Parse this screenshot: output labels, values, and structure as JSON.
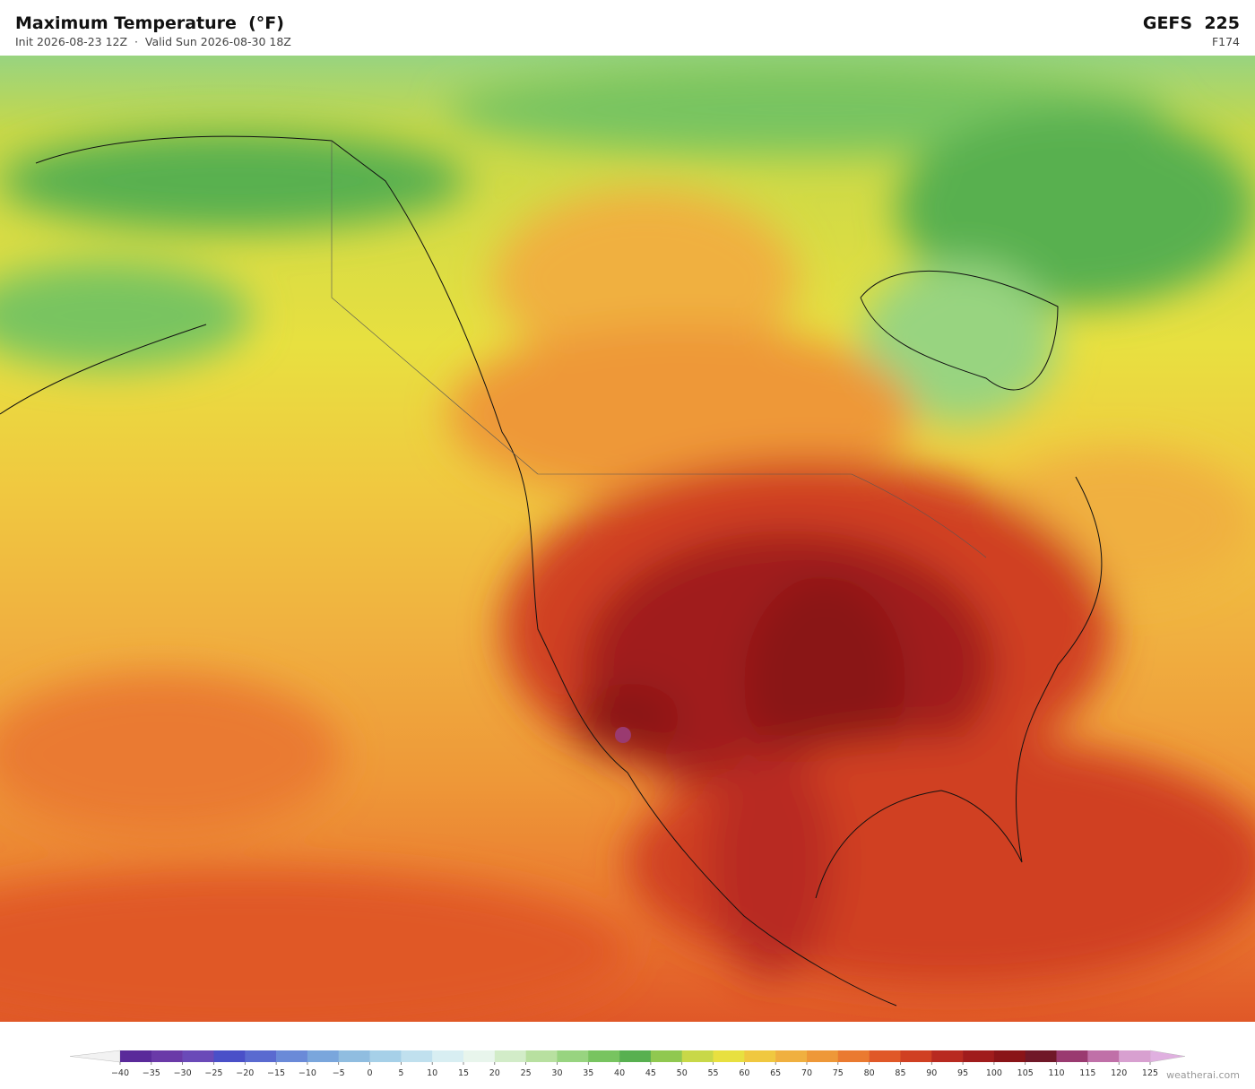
{
  "header": {
    "title": "Maximum Temperature  (°F)",
    "subtitle": "Init 2026-08-23 12Z  ·  Valid Sun 2026-08-30 18Z",
    "model": "GEFS  225",
    "forecast_hour": "F174"
  },
  "colorbar": {
    "ticks": [
      {
        "value": -40,
        "label": "−40"
      },
      {
        "value": -35,
        "label": "−35"
      },
      {
        "value": -30,
        "label": "−30"
      },
      {
        "value": -25,
        "label": "−25"
      },
      {
        "value": -20,
        "label": "−20"
      },
      {
        "value": -15,
        "label": "−15"
      },
      {
        "value": -10,
        "label": "−10"
      },
      {
        "value": -5,
        "label": "−5"
      },
      0,
      5,
      10,
      15,
      20,
      25,
      30,
      35,
      40,
      45,
      50,
      55,
      60,
      65,
      70,
      75,
      80,
      85,
      90,
      95,
      100,
      105,
      110,
      115,
      120,
      125
    ],
    "colors": [
      "#5a2a9a",
      "#6a3aa8",
      "#6a4ab8",
      "#4a50c8",
      "#5a6ad0",
      "#6a8ad8",
      "#7aa6dc",
      "#90bde0",
      "#a6d0e8",
      "#c0e0ee",
      "#d8eef2",
      "#e8f5ec",
      "#d2ecc8",
      "#b8e0a0",
      "#98d480",
      "#78c460",
      "#58b050",
      "#90c850",
      "#c8d848",
      "#e8e040",
      "#f0c840",
      "#f0b040",
      "#ee9838",
      "#ea7a30",
      "#e05828",
      "#d04022",
      "#b82a20",
      "#a01c1c",
      "#8a1418",
      "#701828",
      "#9a3a70",
      "#c070a8",
      "#d8a0d0"
    ],
    "under_color": "#f2f2f2",
    "over_color": "#e0b0e0"
  },
  "watermark": "weatherai.com"
}
